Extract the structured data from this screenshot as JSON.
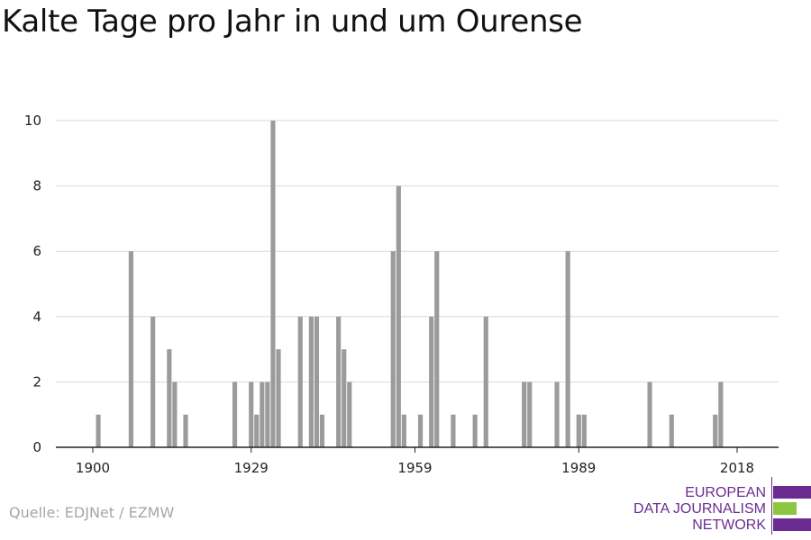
{
  "title": "Kalte Tage pro Jahr in und um Ourense",
  "source": "Quelle: EDJNet / EZMW",
  "logo": {
    "lines": [
      "EUROPEAN",
      "DATA JOURNALISM",
      "NETWORK"
    ],
    "colors": {
      "purple": "#6b2c91",
      "green": "#8dc63f"
    }
  },
  "colors": {
    "bar": "#9b9b9b",
    "grid": "#d9d9d9",
    "axis": "#222222"
  },
  "chart_data": {
    "type": "bar",
    "title": "Kalte Tage pro Jahr in und um Ourense",
    "xlabel": "",
    "ylabel": "",
    "xlim": [
      1894,
      2024
    ],
    "ylim": [
      0,
      10
    ],
    "x_ticks": [
      1900,
      1929,
      1959,
      1989,
      2018
    ],
    "y_ticks": [
      0,
      2,
      4,
      6,
      8,
      10
    ],
    "grid": true,
    "legend": "none",
    "x": [
      1901,
      1907,
      1911,
      1914,
      1915,
      1917,
      1926,
      1929,
      1930,
      1931,
      1932,
      1933,
      1934,
      1938,
      1940,
      1941,
      1942,
      1945,
      1946,
      1947,
      1955,
      1956,
      1957,
      1960,
      1962,
      1963,
      1966,
      1970,
      1972,
      1979,
      1980,
      1985,
      1987,
      1989,
      1990,
      2002,
      2006,
      2014,
      2015
    ],
    "values": [
      1,
      6,
      4,
      3,
      2,
      1,
      2,
      2,
      1,
      2,
      2,
      10,
      3,
      4,
      4,
      4,
      1,
      4,
      3,
      2,
      6,
      8,
      1,
      1,
      4,
      6,
      1,
      1,
      4,
      2,
      2,
      2,
      6,
      1,
      1,
      2,
      1,
      1,
      2
    ]
  }
}
